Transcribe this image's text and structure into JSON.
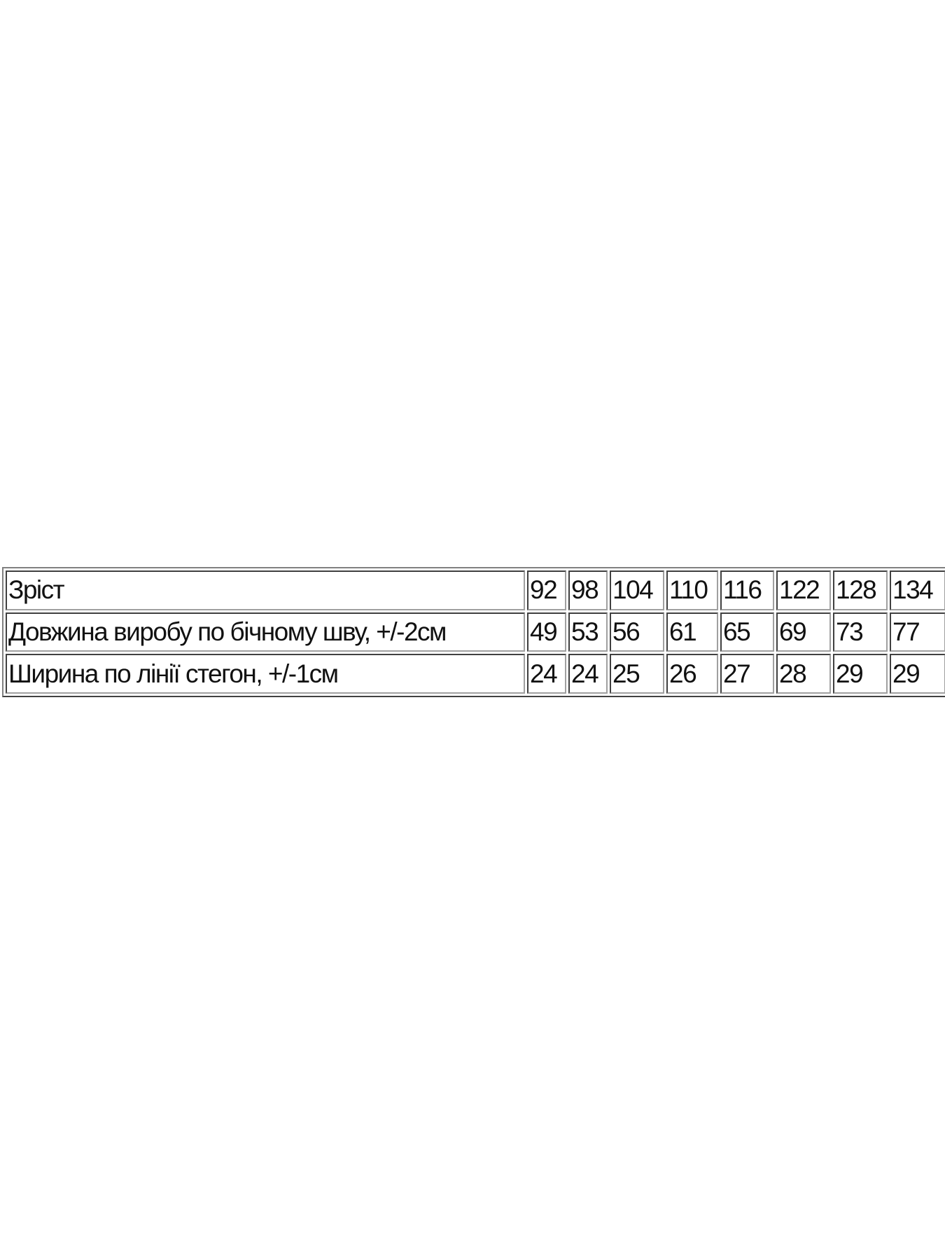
{
  "table": {
    "rows": [
      {
        "label": "Зріст",
        "values": [
          "92",
          "98",
          "104",
          "110",
          "116",
          "122",
          "128",
          "134"
        ]
      },
      {
        "label": "Довжина виробу по бічному шву, +/-2см",
        "values": [
          "49",
          "53",
          "56",
          "61",
          "65",
          "69",
          "73",
          "77"
        ]
      },
      {
        "label": "Ширина по лінії стегон, +/-1см",
        "values": [
          "24",
          "24",
          "25",
          "26",
          "27",
          "28",
          "29",
          "29"
        ]
      }
    ]
  }
}
